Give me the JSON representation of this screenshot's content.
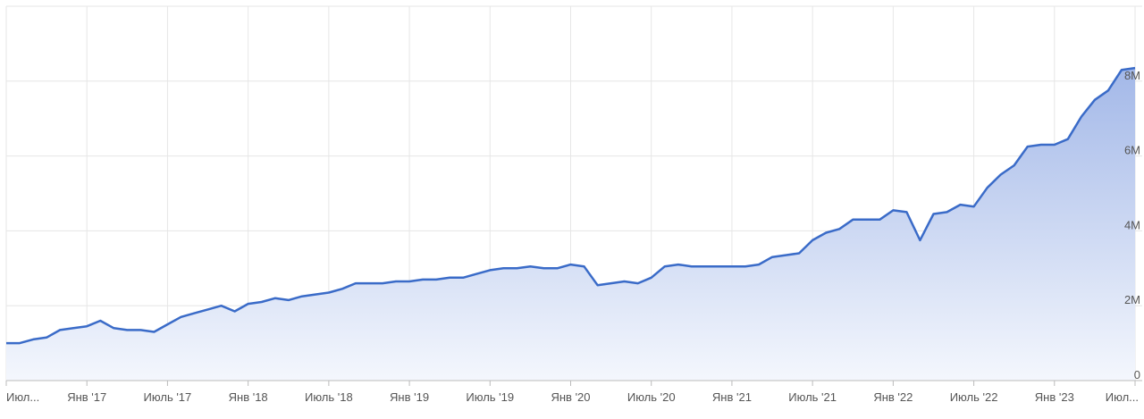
{
  "chart_data": {
    "type": "area",
    "x": [
      "2016-07",
      "2016-08",
      "2016-09",
      "2016-10",
      "2016-11",
      "2016-12",
      "2017-01",
      "2017-02",
      "2017-03",
      "2017-04",
      "2017-05",
      "2017-06",
      "2017-07",
      "2017-08",
      "2017-09",
      "2017-10",
      "2017-11",
      "2017-12",
      "2018-01",
      "2018-02",
      "2018-03",
      "2018-04",
      "2018-05",
      "2018-06",
      "2018-07",
      "2018-08",
      "2018-09",
      "2018-10",
      "2018-11",
      "2018-12",
      "2019-01",
      "2019-02",
      "2019-03",
      "2019-04",
      "2019-05",
      "2019-06",
      "2019-07",
      "2019-08",
      "2019-09",
      "2019-10",
      "2019-11",
      "2019-12",
      "2020-01",
      "2020-02",
      "2020-03",
      "2020-04",
      "2020-05",
      "2020-06",
      "2020-07",
      "2020-08",
      "2020-09",
      "2020-10",
      "2020-11",
      "2020-12",
      "2021-01",
      "2021-02",
      "2021-03",
      "2021-04",
      "2021-05",
      "2021-06",
      "2021-07",
      "2021-08",
      "2021-09",
      "2021-10",
      "2021-11",
      "2021-12",
      "2022-01",
      "2022-02",
      "2022-03",
      "2022-04",
      "2022-05",
      "2022-06",
      "2022-07",
      "2022-08",
      "2022-09",
      "2022-10",
      "2022-11",
      "2022-12",
      "2023-01",
      "2023-02",
      "2023-03",
      "2023-04",
      "2023-05",
      "2023-06",
      "2023-07"
    ],
    "series": [
      {
        "color": "#3a6bc8",
        "values": [
          1000000,
          1000000,
          1100000,
          1150000,
          1350000,
          1400000,
          1450000,
          1600000,
          1400000,
          1350000,
          1350000,
          1300000,
          1500000,
          1700000,
          1800000,
          1900000,
          2000000,
          1850000,
          2050000,
          2100000,
          2200000,
          2150000,
          2250000,
          2300000,
          2350000,
          2450000,
          2600000,
          2600000,
          2600000,
          2650000,
          2650000,
          2700000,
          2700000,
          2750000,
          2750000,
          2850000,
          2950000,
          3000000,
          3000000,
          3050000,
          3000000,
          3000000,
          3100000,
          3050000,
          2550000,
          2600000,
          2650000,
          2600000,
          2750000,
          3050000,
          3100000,
          3050000,
          3050000,
          3050000,
          3050000,
          3050000,
          3100000,
          3300000,
          3350000,
          3400000,
          3750000,
          3950000,
          4050000,
          4300000,
          4300000,
          4300000,
          4550000,
          4500000,
          3750000,
          4450000,
          4500000,
          4700000,
          4650000,
          5150000,
          5500000,
          5750000,
          6250000,
          6300000,
          6300000,
          6450000,
          7050000,
          7500000,
          7750000,
          8300000,
          8350000
        ]
      }
    ],
    "xlim": [
      "2016-07",
      "2023-07"
    ],
    "xticks": [
      {
        "value": "2016-07",
        "label": "Июл..."
      },
      {
        "value": "2017-01",
        "label": "Янв '17"
      },
      {
        "value": "2017-07",
        "label": "Июль '17"
      },
      {
        "value": "2018-01",
        "label": "Янв '18"
      },
      {
        "value": "2018-07",
        "label": "Июль '18"
      },
      {
        "value": "2019-01",
        "label": "Янв '19"
      },
      {
        "value": "2019-07",
        "label": "Июль '19"
      },
      {
        "value": "2020-01",
        "label": "Янв '20"
      },
      {
        "value": "2020-07",
        "label": "Июль '20"
      },
      {
        "value": "2021-01",
        "label": "Янв '21"
      },
      {
        "value": "2021-07",
        "label": "Июль '21"
      },
      {
        "value": "2022-01",
        "label": "Янв '22"
      },
      {
        "value": "2022-07",
        "label": "Июль '22"
      },
      {
        "value": "2023-01",
        "label": "Янв '23"
      },
      {
        "value": "2023-07",
        "label": "Июл..."
      }
    ],
    "ylim": [
      0,
      10000000
    ],
    "yticks": [
      0,
      {
        "value": 2000000,
        "label": "2M"
      },
      {
        "value": 4000000,
        "label": "4M"
      },
      {
        "value": 6000000,
        "label": "6M"
      },
      {
        "value": 8000000,
        "label": "8M"
      }
    ],
    "grid": true
  }
}
